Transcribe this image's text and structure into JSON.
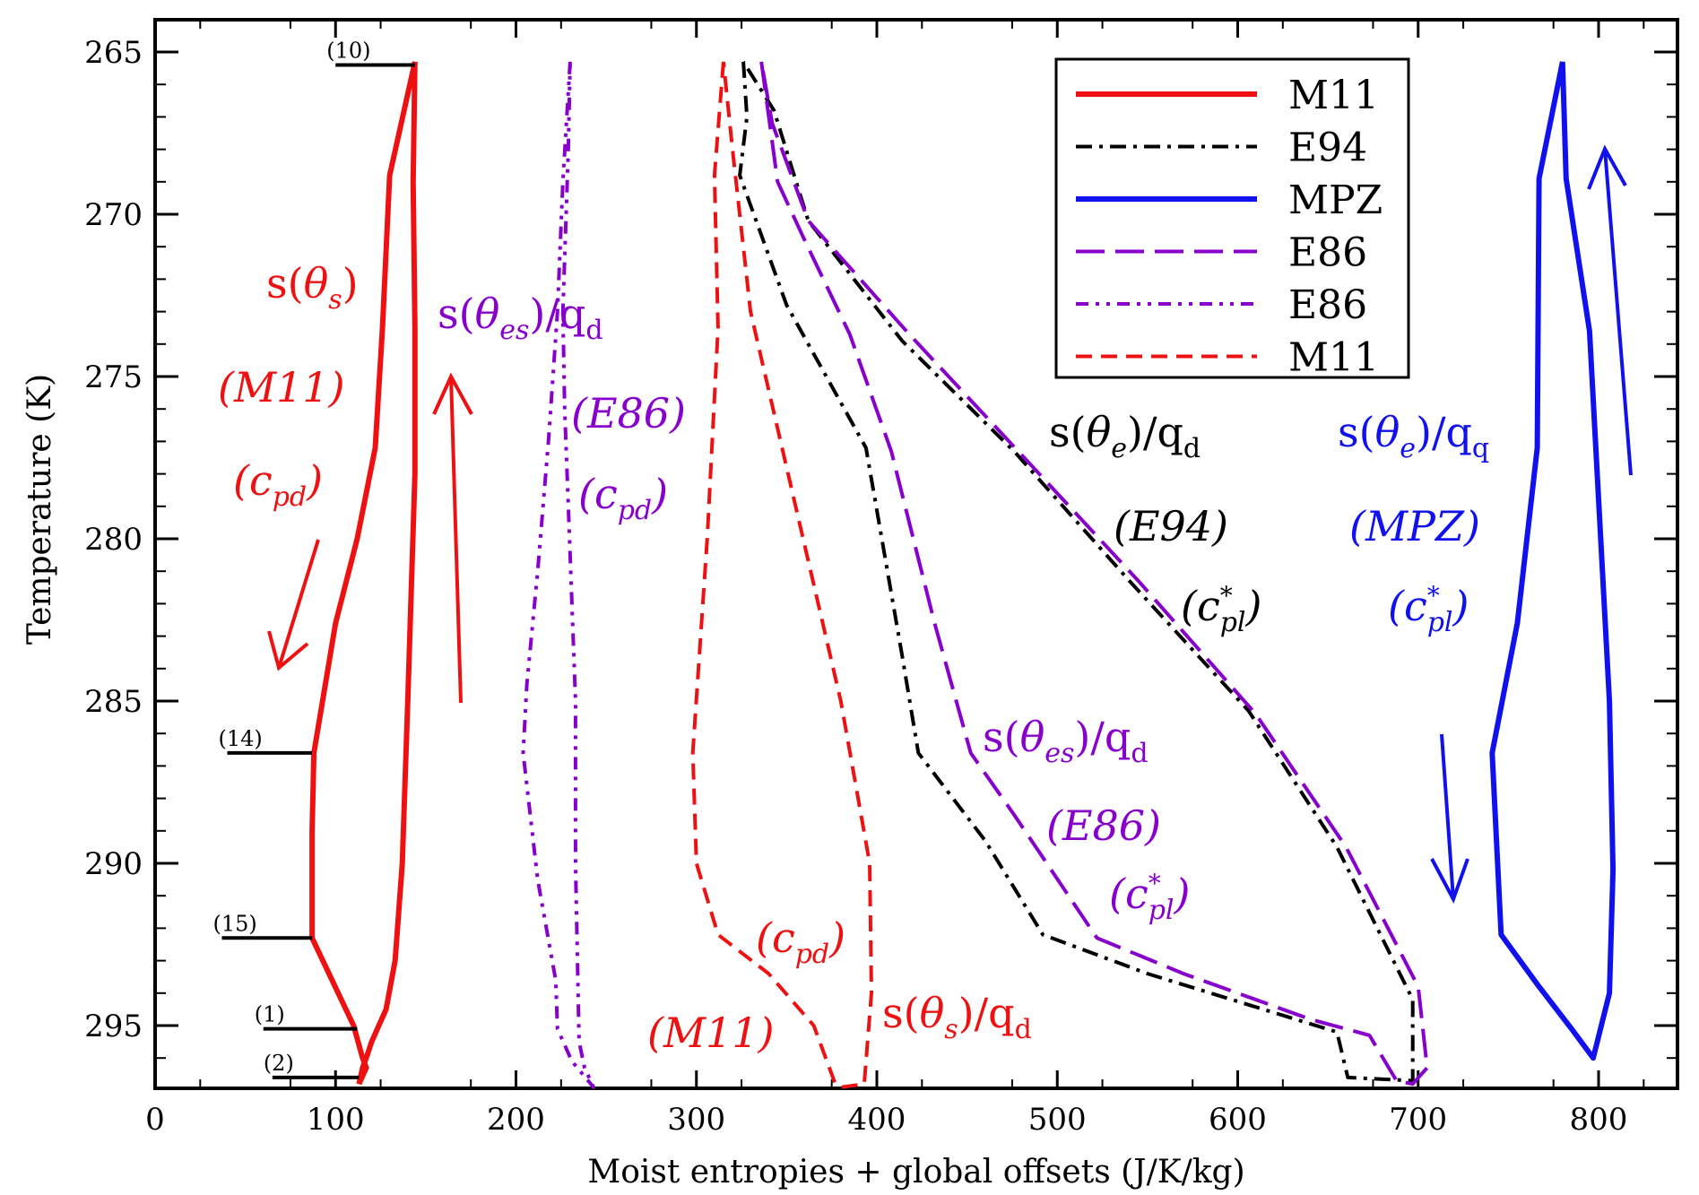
{
  "chart_data": {
    "type": "line",
    "xlabel": "Moist entropies + global offsets (J/K/kg)",
    "ylabel": "Temperature (K)",
    "xlim": [
      0,
      850
    ],
    "ylim": [
      297,
      264
    ],
    "y_inverted": true,
    "grid": false,
    "legend_position": "top-right",
    "x_ticks": [
      0,
      100,
      200,
      300,
      400,
      500,
      600,
      700,
      800
    ],
    "y_ticks": [
      265,
      270,
      275,
      280,
      285,
      290,
      295
    ],
    "legend": [
      {
        "label": "M11",
        "color": "#ee1111",
        "style": "solid"
      },
      {
        "label": "E94",
        "color": "#000000",
        "style": "dashdot"
      },
      {
        "label": "MPZ",
        "color": "#1111ee",
        "style": "solid"
      },
      {
        "label": "E86",
        "color": "#8800cc",
        "style": "dash"
      },
      {
        "label": "E86",
        "color": "#8800cc",
        "style": "dashdotdot"
      },
      {
        "label": "M11",
        "color": "#ee1111",
        "style": "shortdash"
      }
    ],
    "series": [
      {
        "color": "#ee1111",
        "style": "solid",
        "x": [
          144,
          130,
          126,
          122,
          112,
          100,
          88,
          87,
          87,
          110,
          115,
          117,
          113
        ],
        "y": [
          265.3,
          268.8,
          273.5,
          277.2,
          280,
          282.6,
          286.6,
          289,
          292.3,
          295,
          296,
          296.3,
          296.8
        ]
      },
      {
        "x": [
          144,
          143,
          144,
          144,
          140,
          137,
          133,
          128,
          120,
          117,
          115,
          113
        ],
        "y": [
          265.3,
          269,
          273.5,
          278,
          285,
          290,
          293,
          294.5,
          295.5,
          296,
          296.3,
          296.8
        ],
        "color": "#ee1111",
        "style": "solid"
      },
      {
        "color": "#000000",
        "style": "dashdot",
        "x": [
          332,
          333,
          330,
          358,
          395,
          423,
          433,
          456,
          492,
          550,
          655,
          662,
          697,
          692,
          683,
          690,
          733,
          700,
          655,
          608,
          542,
          476,
          414,
          364,
          345,
          332
        ],
        "y": [
          265.3,
          266.9,
          269.5,
          272.5,
          277.2,
          283.6,
          286.5,
          288.5,
          292,
          293.2,
          295.4,
          296.9,
          296.8,
          294.5,
          293.0,
          291.7,
          290.0,
          289.5,
          285.2,
          281.3,
          277.3,
          273.9,
          270.1,
          266.9,
          265.9,
          265.3
        ],
        "_unused": true
      },
      {
        "color": "#000000",
        "style": "dashdot",
        "x": [
          326,
          328,
          324,
          350,
          394,
          414,
          423,
          460,
          492,
          550,
          655,
          661,
          697,
          697,
          655,
          606,
          540,
          476,
          414,
          362,
          343,
          326
        ],
        "y": [
          265.3,
          267.0,
          268.8,
          272.8,
          277.2,
          283.6,
          286.6,
          289.3,
          292.2,
          293.4,
          295.2,
          296.6,
          296.7,
          294.2,
          289.5,
          285.3,
          281.3,
          277.3,
          273.9,
          270.2,
          266.8,
          265.3
        ]
      },
      {
        "color": "#1111ee",
        "style": "solid",
        "x": [
          780,
          767,
          766,
          755,
          741,
          746,
          767,
          785,
          797,
          806,
          808,
          806,
          795,
          782,
          780
        ],
        "y": [
          265.3,
          268.9,
          277.2,
          282.6,
          286.6,
          292.2,
          293.8,
          295.1,
          296.0,
          294.0,
          290.2,
          285.0,
          273.6,
          268.9,
          265.3
        ]
      },
      {
        "color": "#8800cc",
        "style": "dash",
        "x": [
          336,
          345,
          360,
          385,
          408,
          432,
          452,
          476,
          522,
          570,
          640,
          673,
          688,
          697,
          705,
          700,
          660,
          610,
          545,
          480,
          418,
          362,
          342,
          336
        ],
        "y": [
          265.3,
          269.0,
          270.8,
          273.7,
          277.3,
          282.6,
          286.6,
          288.5,
          292.3,
          293.4,
          294.8,
          295.3,
          296.7,
          296.8,
          296.3,
          293.8,
          289.5,
          285.4,
          281.3,
          277.4,
          273.7,
          270.2,
          267.2,
          265.3
        ]
      },
      {
        "color": "#8800cc",
        "style": "dashdotdot",
        "x": [
          230,
          226,
          223,
          218,
          212,
          206,
          204,
          212,
          222,
          223,
          231,
          243,
          238,
          235,
          233,
          233,
          231,
          229,
          227,
          226,
          229,
          230
        ],
        "y": [
          265.3,
          269.0,
          273.0,
          277.0,
          281.0,
          284.5,
          286.6,
          290.5,
          293.6,
          295.1,
          296.1,
          296.9,
          296.3,
          295.5,
          290.0,
          285.0,
          282.0,
          279.0,
          276.0,
          273.0,
          268.0,
          265.3
        ]
      },
      {
        "color": "#ee1111",
        "style": "shortdash",
        "x": [
          315,
          310,
          312,
          306,
          298,
          300,
          312,
          340,
          365,
          377,
          380,
          393,
          397,
          396,
          380,
          355,
          330,
          320,
          315
        ],
        "y": [
          265.3,
          268.8,
          273.5,
          280.0,
          286.6,
          290.0,
          292.2,
          293.4,
          295.0,
          296.8,
          296.9,
          296.8,
          294.0,
          290.0,
          285.0,
          279.0,
          273.0,
          268.0,
          265.3
        ]
      }
    ],
    "level_markers": [
      {
        "label": "(10)",
        "y": 265.4
      },
      {
        "label": "(14)",
        "y": 286.6
      },
      {
        "label": "(15)",
        "y": 292.3
      },
      {
        "label": "(1)",
        "y": 295.1
      },
      {
        "label": "(2)",
        "y": 296.6
      }
    ],
    "annotations": [
      {
        "lines": [
          "s(θs)",
          "(M11)",
          "(cpd)"
        ],
        "color": "#ee1111"
      },
      {
        "lines": [
          "s(θes)/qd",
          "(E86)",
          "(cpd)"
        ],
        "color": "#8800cc"
      },
      {
        "lines": [
          "s(θe)/qd",
          "(E94)",
          "(c*pl)"
        ],
        "color": "#000000"
      },
      {
        "lines": [
          "s(θe)/qq",
          "(MPZ)",
          "(c*pl)"
        ],
        "color": "#1111ee"
      },
      {
        "lines": [
          "s(θes)/qd",
          "(E86)",
          "(c*pl)"
        ],
        "color": "#8800cc"
      },
      {
        "lines": [
          "(cpd)",
          "(M11)",
          "s(θs)/qd"
        ],
        "color": "#ee1111"
      }
    ]
  }
}
